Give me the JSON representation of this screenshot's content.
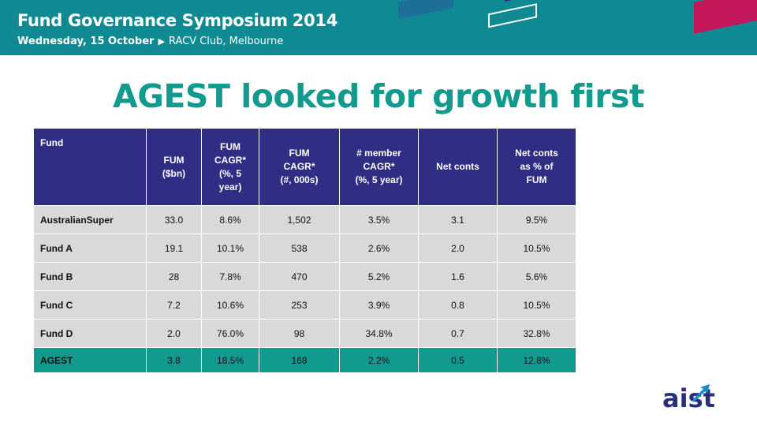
{
  "banner": {
    "event_title": "Fund Governance Symposium",
    "event_year": "2014",
    "date": "Wednesday, 15 October",
    "venue": "RACV Club, Melbourne",
    "colors": {
      "background": "#108a92",
      "accent_magenta": "#c2185b",
      "accent_green": "#8bc34a",
      "accent_navy": "#2f2d84"
    }
  },
  "slide": {
    "title": "AGEST looked for growth first",
    "title_color": "#139a8f"
  },
  "table": {
    "header_color": "#2f2d84",
    "row_color": "#d9d9d9",
    "highlight_color": "#139a8f",
    "headers": [
      [
        "Fund"
      ],
      [
        "FUM",
        "($bn)"
      ],
      [
        "FUM",
        "CAGR*",
        "(%, 5",
        "year)"
      ],
      [
        "FUM",
        "CAGR*",
        "(#, 000s)"
      ],
      [
        "# member",
        "CAGR*",
        "(%, 5 year)"
      ],
      [
        "Net conts"
      ],
      [
        "Net conts",
        "as % of",
        "FUM"
      ]
    ],
    "rows": [
      [
        "AustralianSuper",
        "33.0",
        "8.6%",
        "1,502",
        "3.5%",
        "3.1",
        "9.5%"
      ],
      [
        "Fund A",
        "19.1",
        "10.1%",
        "538",
        "2.6%",
        "2.0",
        "10.5%"
      ],
      [
        "Fund B",
        "28",
        "7.8%",
        "470",
        "5.2%",
        "1.6",
        "5.6%"
      ],
      [
        "Fund C",
        "7.2",
        "10.6%",
        "253",
        "3.9%",
        "0.8",
        "10.5%"
      ],
      [
        "Fund D",
        "2.0",
        "76.0%",
        "98",
        "34.8%",
        "0.7",
        "32.8%"
      ],
      [
        "AGEST",
        "3.8",
        "18.5%",
        "168",
        "2.2%",
        "0.5",
        "12.8%"
      ]
    ]
  },
  "logo": {
    "text": "aist",
    "icon": "aist-arrow-logo"
  }
}
